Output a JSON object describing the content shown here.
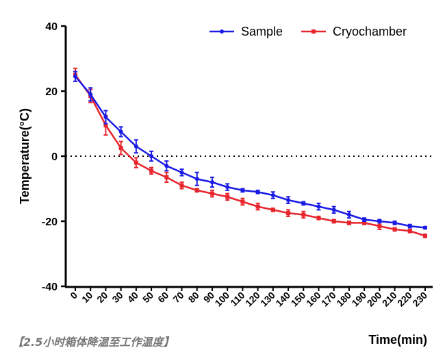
{
  "chart_data": {
    "type": "line",
    "title": "",
    "xlabel": "Time(min)",
    "ylabel": "Temperature(°C)",
    "ylim": [
      -40,
      40
    ],
    "yticks": [
      "40",
      "20",
      "0",
      "-20",
      "-40"
    ],
    "x": [
      0,
      10,
      20,
      30,
      40,
      50,
      60,
      70,
      80,
      90,
      100,
      110,
      120,
      130,
      140,
      150,
      160,
      170,
      180,
      190,
      200,
      210,
      220,
      230
    ],
    "xtick_labels": [
      "0",
      "10",
      "20",
      "30",
      "40",
      "50",
      "60",
      "70",
      "80",
      "90",
      "100",
      "110",
      "120",
      "130",
      "140",
      "150",
      "160",
      "170",
      "180",
      "190",
      "200",
      "210",
      "220",
      "230"
    ],
    "reference_line": {
      "y": 0,
      "style": "dotted"
    },
    "legend_position": "top-right",
    "series": [
      {
        "name": "Sample",
        "color": "#1a1ae6",
        "marker": "circle",
        "values": [
          24.5,
          19,
          12,
          7.5,
          3,
          0,
          -3,
          -5,
          -7,
          -8,
          -9.5,
          -10.5,
          -11,
          -12,
          -13.5,
          -14.5,
          -15.5,
          -16.5,
          -18,
          -19.5,
          -20,
          -20.5,
          -21.5,
          -22
        ],
        "errors": [
          1.5,
          2,
          2,
          1.5,
          2,
          1.5,
          1.5,
          1,
          2,
          1.5,
          1,
          0.5,
          0.5,
          1,
          1,
          0.5,
          1,
          1,
          1,
          0.5,
          0.5,
          0.5,
          0.5,
          0.3
        ]
      },
      {
        "name": "Cryochamber",
        "color": "#e8242c",
        "marker": "square",
        "values": [
          25,
          18.5,
          9.5,
          2.5,
          -2,
          -4.5,
          -6.5,
          -9,
          -10.5,
          -11.5,
          -12.5,
          -14,
          -15.5,
          -16.5,
          -17.5,
          -18,
          -19,
          -20,
          -20.5,
          -20.5,
          -21.5,
          -22.5,
          -23,
          -24.5
        ],
        "errors": [
          2,
          2,
          3,
          2,
          1.5,
          1,
          1.5,
          1,
          0.5,
          1,
          1,
          1,
          1,
          0.5,
          1,
          1,
          0.5,
          0.5,
          0.5,
          0.5,
          1,
          0.5,
          0.5,
          0.5
        ]
      }
    ]
  },
  "caption": "【2.5小时箱体降温至工作温度】"
}
